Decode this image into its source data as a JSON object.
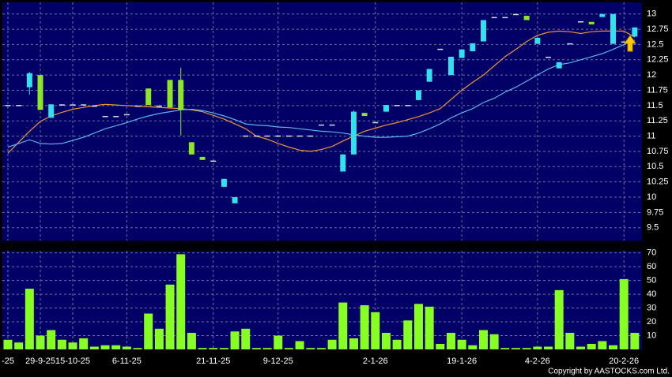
{
  "chart_data": [
    {
      "type": "candlestick",
      "categories": [
        "-25",
        null,
        null,
        "29-9-25",
        null,
        null,
        "15-10-25",
        null,
        null,
        null,
        null,
        "6-11-25",
        null,
        null,
        null,
        null,
        null,
        null,
        null,
        "21-11-25",
        null,
        null,
        null,
        null,
        null,
        "9-12-25",
        null,
        null,
        null,
        null,
        null,
        null,
        null,
        null,
        "2-1-26",
        null,
        null,
        null,
        null,
        null,
        null,
        null,
        "19-1-26",
        null,
        null,
        null,
        null,
        null,
        null,
        "4-2-26",
        null,
        null,
        null,
        null,
        null,
        null,
        null,
        "20-2-26",
        null
      ],
      "open": [
        11.51,
        11.51,
        11.8,
        12.0,
        11.3,
        11.52,
        11.52,
        11.52,
        11.5,
        11.33,
        11.33,
        11.36,
        11.5,
        11.78,
        11.5,
        11.92,
        11.92,
        10.9,
        10.66,
        10.6,
        10.17,
        9.9,
        11.01,
        11.01,
        11.01,
        11.01,
        11.01,
        11.01,
        11.01,
        11.19,
        11.19,
        10.42,
        10.7,
        11.38,
        11.23,
        11.4,
        11.51,
        11.51,
        11.59,
        11.89,
        12.43,
        12.0,
        12.28,
        12.39,
        12.55,
        12.95,
        12.95,
        13.0,
        12.97,
        12.51,
        12.3,
        12.11,
        12.52,
        12.88,
        12.87,
        12.95,
        12.51,
        12.55,
        12.63
      ],
      "high": [
        11.51,
        11.51,
        12.05,
        12.0,
        11.52,
        11.52,
        11.52,
        11.52,
        11.5,
        11.33,
        11.33,
        11.36,
        11.5,
        11.78,
        11.5,
        11.92,
        12.12,
        10.9,
        10.66,
        10.6,
        10.3,
        10.0,
        11.01,
        11.01,
        11.01,
        11.01,
        11.01,
        11.01,
        11.01,
        11.19,
        11.19,
        10.7,
        11.42,
        11.38,
        11.23,
        11.51,
        11.51,
        11.51,
        11.75,
        12.1,
        12.43,
        12.3,
        12.42,
        12.52,
        12.9,
        12.95,
        12.95,
        13.0,
        12.97,
        12.61,
        12.3,
        12.21,
        12.52,
        12.88,
        12.87,
        13.0,
        13.0,
        12.55,
        12.78
      ],
      "low": [
        11.51,
        11.51,
        11.68,
        11.43,
        11.3,
        11.52,
        11.52,
        11.52,
        11.5,
        11.33,
        11.33,
        11.36,
        11.5,
        11.51,
        11.5,
        11.47,
        11.01,
        10.7,
        10.61,
        10.6,
        10.17,
        9.9,
        11.01,
        11.01,
        11.01,
        11.01,
        11.01,
        11.01,
        11.01,
        11.19,
        11.19,
        10.42,
        10.7,
        11.33,
        11.23,
        11.4,
        11.51,
        11.51,
        11.59,
        11.89,
        12.43,
        12.0,
        12.28,
        12.39,
        12.55,
        12.95,
        12.95,
        13.0,
        12.9,
        12.51,
        12.3,
        12.11,
        12.52,
        12.88,
        12.83,
        12.95,
        12.51,
        12.55,
        12.63
      ],
      "close": [
        11.51,
        11.51,
        12.03,
        11.43,
        11.52,
        11.52,
        11.52,
        11.52,
        11.5,
        11.33,
        11.33,
        11.36,
        11.5,
        11.51,
        11.5,
        11.47,
        11.43,
        10.7,
        10.61,
        10.6,
        10.3,
        10.0,
        11.01,
        11.01,
        11.01,
        11.01,
        11.01,
        11.01,
        11.01,
        11.19,
        11.19,
        10.7,
        11.4,
        11.33,
        11.23,
        11.51,
        11.51,
        11.51,
        11.75,
        12.1,
        12.43,
        12.3,
        12.42,
        12.52,
        12.9,
        12.95,
        12.95,
        13.0,
        12.9,
        12.61,
        12.3,
        12.21,
        12.52,
        12.88,
        12.83,
        13.0,
        13.0,
        12.55,
        12.78
      ],
      "up_color": "#33e0ee",
      "down_color": "#8ee628",
      "flat_color": "#dddddd",
      "series": [
        {
          "color": "#f0923a",
          "values": [
            10.72,
            10.9,
            11.08,
            11.24,
            11.33,
            11.39,
            11.44,
            11.47,
            11.5,
            11.52,
            11.51,
            11.5,
            11.49,
            11.48,
            11.47,
            11.46,
            11.45,
            11.43,
            11.4,
            11.34,
            11.28,
            11.2,
            11.12,
            11.0,
            10.95,
            10.88,
            10.82,
            10.77,
            10.75,
            10.78,
            10.83,
            10.92,
            11.0,
            11.08,
            11.13,
            11.18,
            11.22,
            11.27,
            11.32,
            11.38,
            11.45,
            11.6,
            11.75,
            11.88,
            12.0,
            12.15,
            12.3,
            12.42,
            12.55,
            12.65,
            12.7,
            12.72,
            12.71,
            12.68,
            12.71,
            12.72,
            12.72,
            12.72,
            12.62
          ]
        },
        {
          "color": "#5ab4ea",
          "values": [
            10.82,
            10.88,
            10.94,
            10.88,
            10.87,
            10.88,
            10.93,
            10.98,
            11.05,
            11.12,
            11.17,
            11.22,
            11.28,
            11.33,
            11.37,
            11.4,
            11.43,
            11.44,
            11.42,
            11.38,
            11.33,
            11.27,
            11.2,
            11.18,
            11.17,
            11.15,
            11.14,
            11.12,
            11.1,
            11.08,
            11.07,
            11.05,
            11.02,
            11.0,
            10.98,
            10.98,
            10.99,
            11.0,
            11.05,
            11.12,
            11.2,
            11.3,
            11.38,
            11.45,
            11.55,
            11.62,
            11.72,
            11.8,
            11.9,
            12.0,
            12.1,
            12.17,
            12.2,
            12.25,
            12.3,
            12.35,
            12.42,
            12.5,
            12.57
          ]
        }
      ],
      "ylim": [
        9.29,
        13.19
      ],
      "yticks": [
        9.5,
        9.75,
        10,
        10.25,
        10.5,
        10.75,
        11,
        11.25,
        11.5,
        11.75,
        12,
        12.25,
        12.5,
        12.75,
        13
      ],
      "grid": true
    },
    {
      "type": "bar",
      "values": [
        7,
        5,
        44,
        10,
        14,
        7,
        5,
        8,
        2,
        3,
        3,
        2,
        1,
        26,
        15,
        47,
        69,
        12,
        1,
        1,
        1,
        13,
        15,
        1,
        1,
        10,
        1,
        6,
        1,
        1,
        7,
        34,
        8,
        32,
        27,
        12,
        7,
        21,
        33,
        31,
        4,
        12,
        7,
        3,
        14,
        11,
        1,
        1,
        1,
        2,
        2,
        43,
        12,
        2,
        4,
        6,
        3,
        51,
        12
      ],
      "color": "#88ff22",
      "ylim": [
        0,
        71.5
      ],
      "yticks": [
        10,
        20,
        30,
        40,
        50,
        60,
        70
      ],
      "grid": true,
      "annotation": "Copyright by AASTOCKS.com Ltd."
    }
  ]
}
